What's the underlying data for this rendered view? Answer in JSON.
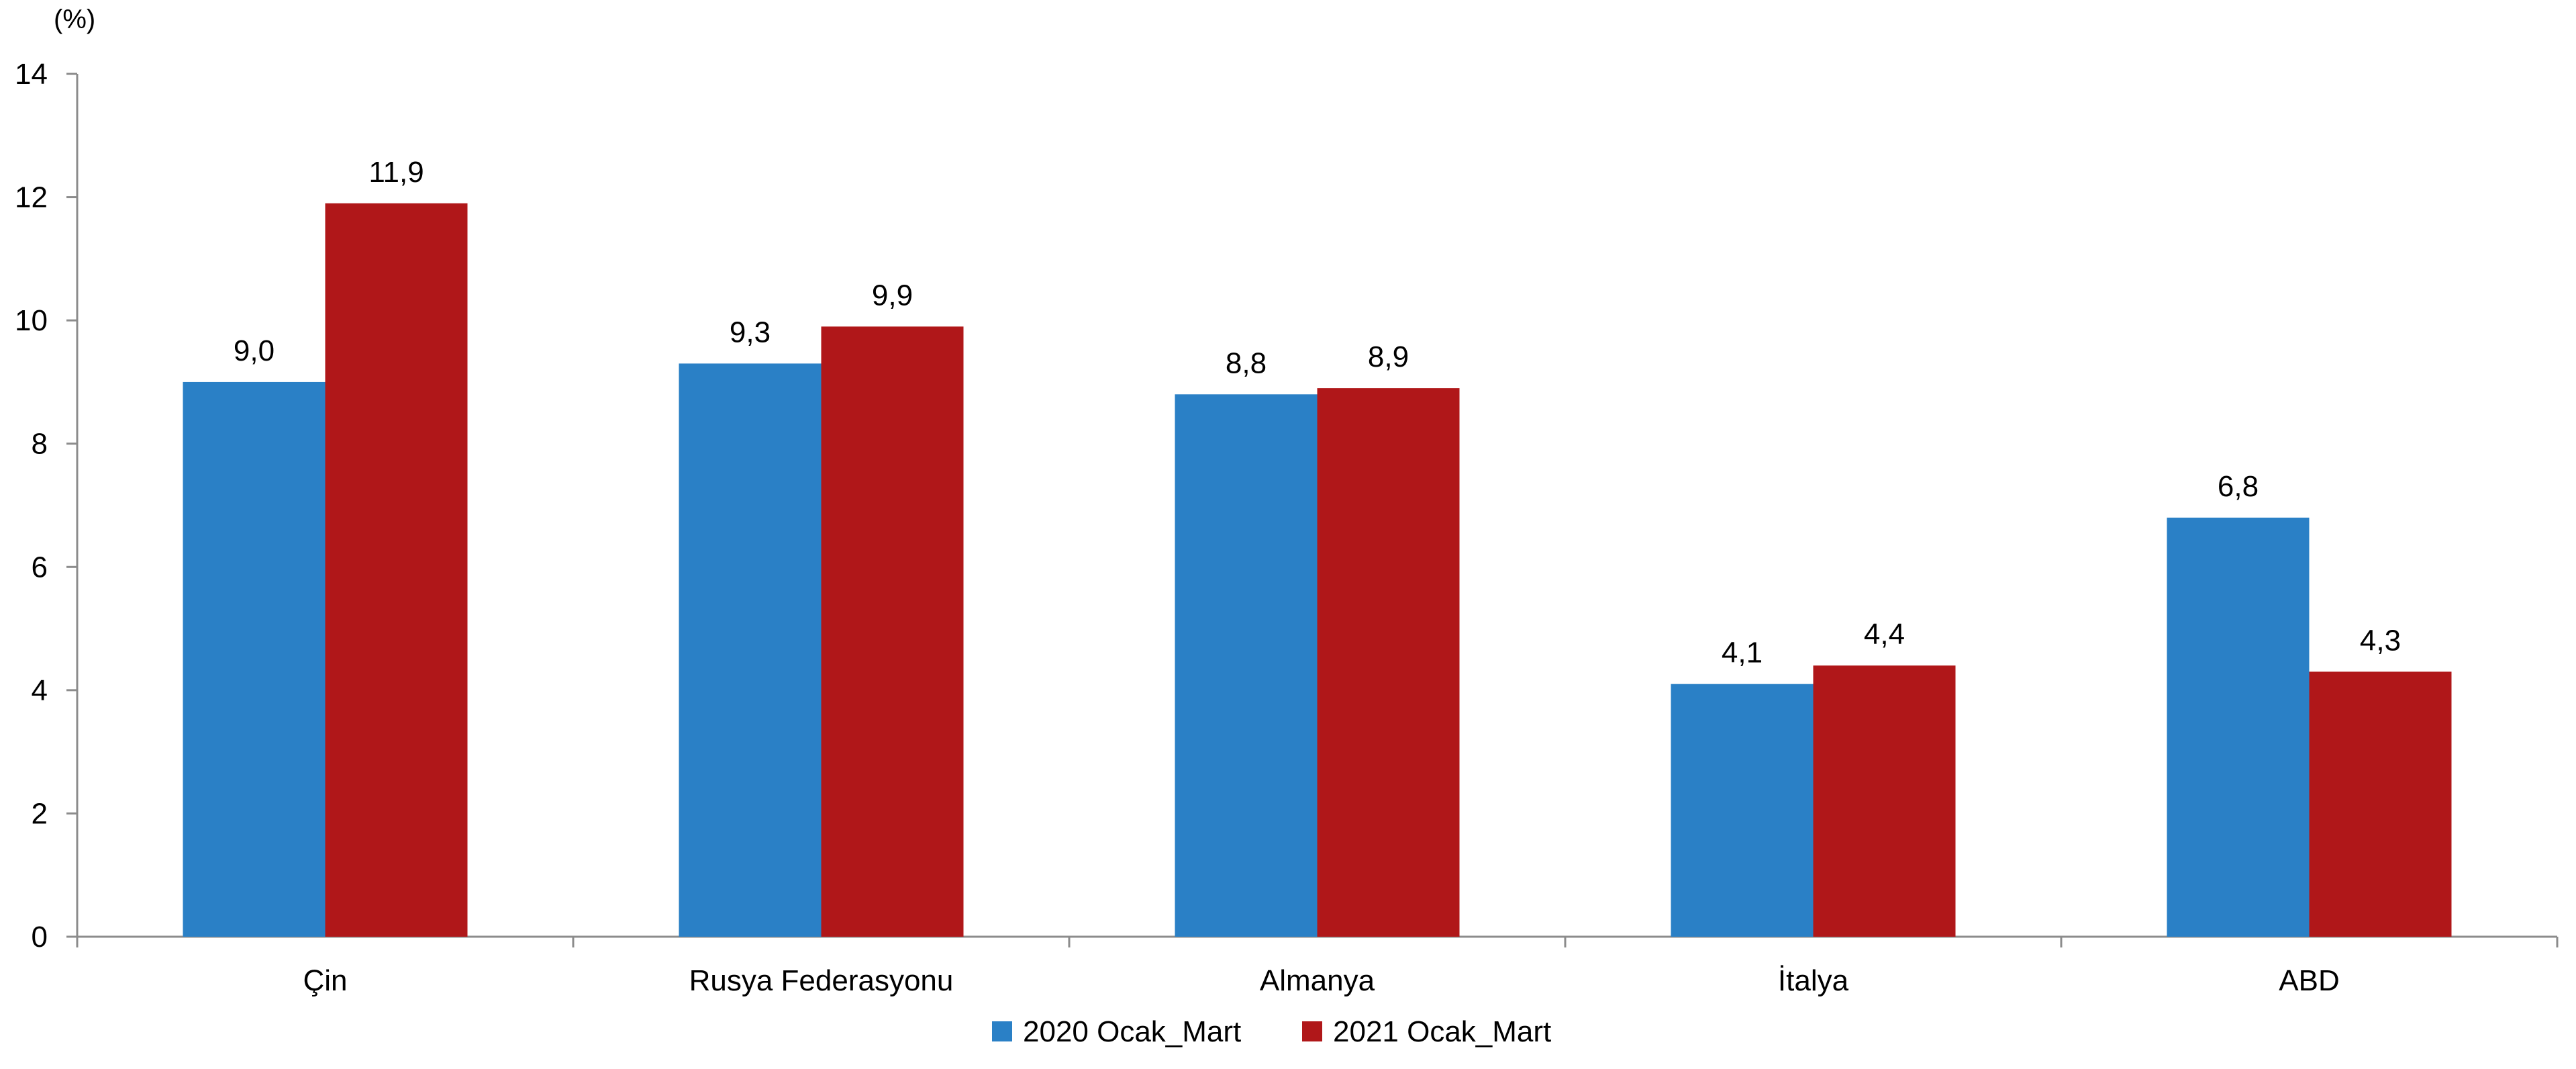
{
  "chart_data": {
    "type": "bar",
    "title": "",
    "xlabel": "",
    "ylabel": "(%)",
    "ylim": [
      0,
      14
    ],
    "yticks": [
      0,
      2,
      4,
      6,
      8,
      10,
      12,
      14
    ],
    "categories": [
      "Çin",
      "Rusya Federasyonu",
      "Almanya",
      "İtalya",
      "ABD"
    ],
    "series": [
      {
        "name": "2020 Ocak_Mart",
        "color": "#2A80C6",
        "values": [
          9.0,
          9.3,
          8.8,
          4.1,
          6.8
        ],
        "labels": [
          "9,0",
          "9,3",
          "8,8",
          "4,1",
          "6,8"
        ]
      },
      {
        "name": "2021 Ocak_Mart",
        "color": "#B01719",
        "values": [
          11.9,
          9.9,
          8.9,
          4.4,
          4.3
        ],
        "labels": [
          "11,9",
          "9,9",
          "8,9",
          "4,4",
          "4,3"
        ]
      }
    ],
    "grid": false,
    "legend_position": "bottom"
  }
}
